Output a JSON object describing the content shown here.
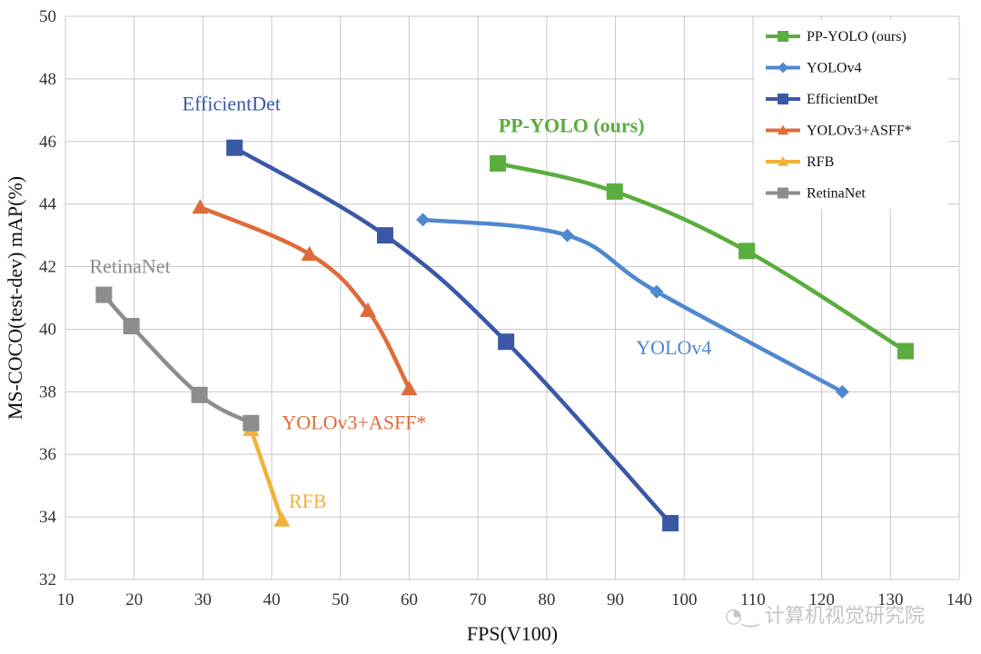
{
  "chart_data": {
    "type": "line",
    "xlabel": "FPS(V100)",
    "ylabel": "MS-COCO(test-dev) mAP(%)",
    "xlim": [
      10,
      140
    ],
    "ylim": [
      32,
      50
    ],
    "xticks": [
      10,
      20,
      30,
      40,
      50,
      60,
      70,
      80,
      90,
      100,
      110,
      120,
      130,
      140
    ],
    "yticks": [
      32,
      34,
      36,
      38,
      40,
      42,
      44,
      46,
      48,
      50
    ],
    "grid": true,
    "legend_position": "top-right",
    "series": [
      {
        "name": "PP-YOLO (ours)",
        "color": "#5aad3e",
        "marker": "square",
        "points": [
          [
            72.9,
            45.3
          ],
          [
            89.9,
            44.4
          ],
          [
            109.1,
            42.5
          ],
          [
            132.2,
            39.3
          ]
        ],
        "annotation": "PP-YOLO (ours)",
        "annotation_at": [
          73,
          46.3
        ],
        "annotation_bold": true
      },
      {
        "name": "YOLOv4",
        "color": "#4f88d0",
        "marker": "diamond",
        "points": [
          [
            62.0,
            43.5
          ],
          [
            83.0,
            43.0
          ],
          [
            96.0,
            41.2
          ],
          [
            123.0,
            38.0
          ]
        ],
        "annotation": "YOLOv4",
        "annotation_at": [
          93,
          39.2
        ],
        "annotation_bold": false
      },
      {
        "name": "EfficientDet",
        "color": "#3b58a6",
        "marker": "square",
        "points": [
          [
            34.6,
            45.8
          ],
          [
            56.5,
            43.0
          ],
          [
            74.1,
            39.6
          ],
          [
            98.0,
            33.8
          ]
        ],
        "annotation": "EfficientDet",
        "annotation_at": [
          27,
          47.0
        ],
        "annotation_bold": false
      },
      {
        "name": "YOLOv3+ASFF*",
        "color": "#df6b3a",
        "marker": "triangle",
        "points": [
          [
            29.6,
            43.9
          ],
          [
            45.5,
            42.4
          ],
          [
            54.0,
            40.6
          ],
          [
            60.0,
            38.1
          ]
        ],
        "annotation": "YOLOv3+ASFF*",
        "annotation_at": [
          41.5,
          36.8
        ],
        "annotation_bold": false
      },
      {
        "name": "RFB",
        "color": "#f0b23a",
        "marker": "triangle",
        "points": [
          [
            37.0,
            36.8
          ],
          [
            41.5,
            33.9
          ]
        ],
        "annotation": "RFB",
        "annotation_at": [
          42.5,
          34.3
        ],
        "annotation_bold": false
      },
      {
        "name": "RetinaNet",
        "color": "#8d8d8d",
        "marker": "square",
        "points": [
          [
            15.6,
            41.1
          ],
          [
            19.6,
            40.1
          ],
          [
            29.5,
            37.9
          ],
          [
            37.0,
            37.0
          ]
        ],
        "annotation": "RetinaNet",
        "annotation_at": [
          13.5,
          41.8
        ],
        "annotation_bold": false
      }
    ]
  },
  "watermark": {
    "text": "计算机视觉研究院"
  }
}
